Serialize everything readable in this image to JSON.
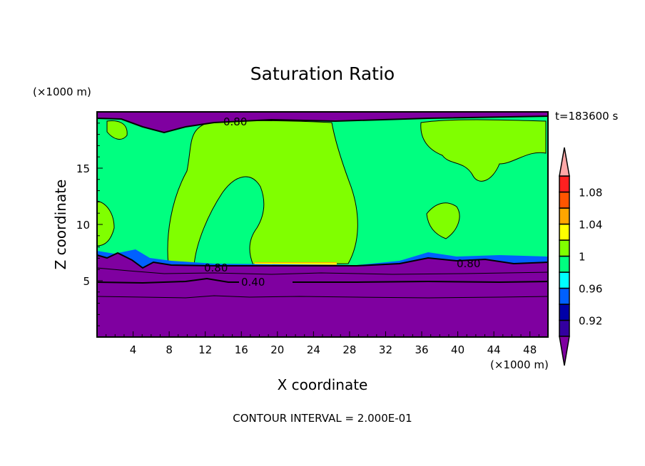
{
  "chart_data": {
    "type": "heatmap",
    "subtype": "filled-contour",
    "title": "Saturation Ratio",
    "xlabel": "X coordinate",
    "ylabel": "Z coordinate",
    "x_unit": "(×1000 m)",
    "y_unit": "(×1000 m)",
    "xlim": [
      0,
      50
    ],
    "ylim": [
      0,
      20
    ],
    "x_ticks": [
      4,
      8,
      12,
      16,
      20,
      24,
      28,
      32,
      36,
      40,
      44,
      48
    ],
    "y_ticks": [
      5,
      10,
      15
    ],
    "time_label": "t=183600 s",
    "footer": "CONTOUR INTERVAL = 2.000E-01",
    "contour_labels": [
      "0.80",
      "0.80",
      "0.80",
      "0.40"
    ],
    "colorbar": {
      "levels": [
        0.9,
        0.92,
        0.94,
        0.96,
        0.98,
        1.0,
        1.02,
        1.04,
        1.06,
        1.08,
        1.1
      ],
      "tick_labels": [
        {
          "value": 0.92,
          "label": "0.92"
        },
        {
          "value": 0.96,
          "label": "0.96"
        },
        {
          "value": 1.0,
          "label": "1"
        },
        {
          "value": 1.04,
          "label": "1.04"
        },
        {
          "value": 1.08,
          "label": "1.08"
        }
      ],
      "colors": [
        "#3300a0",
        "#0000a8",
        "#0060ff",
        "#00ffff",
        "#00ff80",
        "#80ff00",
        "#ffff00",
        "#ffa500",
        "#ff5500",
        "#ff2020"
      ],
      "under_color": "#7f00a0",
      "over_color": "#ffa8a8"
    }
  }
}
